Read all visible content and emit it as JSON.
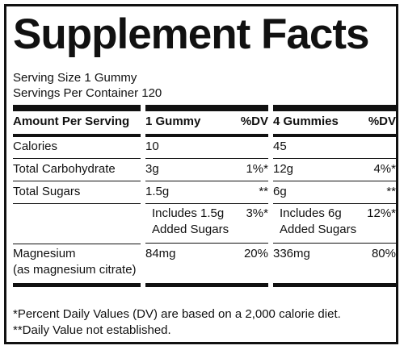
{
  "title": "Supplement Facts",
  "serving_size": "Serving Size 1 Gummy",
  "servings_per_container": "Servings Per Container 120",
  "headers": {
    "amount": "Amount Per Serving",
    "col1": "1 Gummy",
    "dv1": "%DV",
    "col2": "4 Gummies",
    "dv2": "%DV"
  },
  "rows": [
    {
      "name": "Calories",
      "a1": "10",
      "d1": "",
      "a2": "45",
      "d2": ""
    },
    {
      "name": "Total Carbohydrate",
      "a1": "3g",
      "d1": "1%*",
      "a2": "12g",
      "d2": "4%*"
    },
    {
      "name": "Total Sugars",
      "a1": "1.5g",
      "d1": "**",
      "a2": "6g",
      "d2": "**"
    },
    {
      "name": "",
      "a1_line1": "Includes 1.5g",
      "a1_line2": "Added Sugars",
      "d1": "3%*",
      "a2_line1": "Includes 6g",
      "a2_line2": "Added Sugars",
      "d2": "12%*"
    },
    {
      "name_line1": "Magnesium",
      "name_line2": "(as magnesium citrate)",
      "a1": "84mg",
      "d1": "20%",
      "a2": "336mg",
      "d2": "80%"
    }
  ],
  "footnotes": [
    "*Percent Daily Values (DV) are based on a 2,000 calorie diet.",
    "**Daily Value not established."
  ]
}
